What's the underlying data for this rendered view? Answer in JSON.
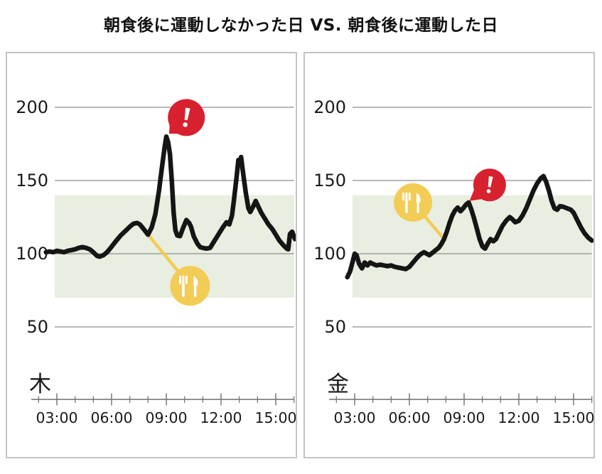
{
  "page": {
    "title": "朝食後に運動しなかった日 VS. 朝食後に運動した日",
    "background": "#ffffff"
  },
  "colors": {
    "alert_red": "#D7212E",
    "meal_yellow": "#F2CC55",
    "target_band_green": "#E8EEE0",
    "line_black": "#151515",
    "grid_gray": "#8E8E8E",
    "axis_gray": "#6E6E6E",
    "text_dark": "#1A1A1A",
    "card_border_gray": "#C3C3C3",
    "icon_glyph_white": "#FFFFFF"
  },
  "chart_data": {
    "type": "line",
    "title": "朝食後に運動しなかった日 VS. 朝食後に運動した日",
    "grid": true,
    "y_axis": {
      "ticks": [
        200,
        150,
        100,
        50
      ]
    },
    "x_axis": {
      "major_tick_labels": [
        "03:00",
        "06:00",
        "09:00",
        "12:00",
        "15:00"
      ],
      "major_tick_hours": [
        3,
        6,
        9,
        12,
        15
      ],
      "minor_tick_hours": [
        2,
        4,
        5,
        7,
        8,
        10,
        11,
        13,
        14,
        16
      ]
    },
    "target_band": {
      "low": 70,
      "high": 140
    },
    "charts": [
      {
        "id": "no-exercise-day",
        "day_label": "木",
        "series": [
          [
            2.4,
            101
          ],
          [
            2.6,
            101.5
          ],
          [
            2.8,
            101
          ],
          [
            3.0,
            102
          ],
          [
            3.2,
            101.5
          ],
          [
            3.4,
            101
          ],
          [
            3.6,
            102
          ],
          [
            3.8,
            102.5
          ],
          [
            4.0,
            103
          ],
          [
            4.2,
            104
          ],
          [
            4.4,
            104.5
          ],
          [
            4.6,
            104
          ],
          [
            4.8,
            103
          ],
          [
            5.0,
            101
          ],
          [
            5.2,
            98.5
          ],
          [
            5.35,
            98
          ],
          [
            5.55,
            99
          ],
          [
            5.75,
            101
          ],
          [
            5.95,
            104
          ],
          [
            6.2,
            108
          ],
          [
            6.5,
            112.5
          ],
          [
            6.8,
            116
          ],
          [
            7.0,
            118.5
          ],
          [
            7.2,
            120.5
          ],
          [
            7.4,
            121
          ],
          [
            7.55,
            120
          ],
          [
            7.75,
            117
          ],
          [
            8.0,
            113
          ],
          [
            8.2,
            118
          ],
          [
            8.4,
            127
          ],
          [
            8.6,
            143
          ],
          [
            8.75,
            158
          ],
          [
            8.9,
            172
          ],
          [
            9.0,
            180
          ],
          [
            9.1,
            176
          ],
          [
            9.2,
            168
          ],
          [
            9.3,
            150
          ],
          [
            9.4,
            128
          ],
          [
            9.5,
            116
          ],
          [
            9.6,
            112.5
          ],
          [
            9.75,
            112
          ],
          [
            9.9,
            117
          ],
          [
            10.1,
            123
          ],
          [
            10.25,
            121
          ],
          [
            10.35,
            118.5
          ],
          [
            10.5,
            112
          ],
          [
            10.7,
            107
          ],
          [
            10.85,
            104.5
          ],
          [
            11.0,
            104
          ],
          [
            11.2,
            103.5
          ],
          [
            11.4,
            104
          ],
          [
            11.6,
            108
          ],
          [
            11.8,
            112
          ],
          [
            11.95,
            115
          ],
          [
            12.1,
            118
          ],
          [
            12.3,
            121.5
          ],
          [
            12.45,
            120
          ],
          [
            12.6,
            126
          ],
          [
            12.7,
            136
          ],
          [
            12.85,
            152
          ],
          [
            12.95,
            164
          ],
          [
            13.0,
            161
          ],
          [
            13.1,
            166
          ],
          [
            13.2,
            156
          ],
          [
            13.35,
            142
          ],
          [
            13.5,
            131
          ],
          [
            13.6,
            128.5
          ],
          [
            13.75,
            132
          ],
          [
            13.9,
            136
          ],
          [
            14.05,
            132
          ],
          [
            14.2,
            128
          ],
          [
            14.4,
            124
          ],
          [
            14.6,
            120
          ],
          [
            14.8,
            117
          ],
          [
            15.0,
            113
          ],
          [
            15.2,
            109
          ],
          [
            15.4,
            106
          ],
          [
            15.6,
            103.5
          ],
          [
            15.68,
            103
          ],
          [
            15.78,
            113.5
          ],
          [
            15.9,
            115
          ],
          [
            16.05,
            110
          ]
        ],
        "meal_marker": {
          "icon": "fork-knife",
          "attach": {
            "hour": 8.0,
            "value": 113
          },
          "center": {
            "hour": 10.3,
            "value": 78
          },
          "radius": 28
        },
        "alert_marker": {
          "icon": "exclamation",
          "tip": {
            "hour": 9.15,
            "value": 182
          },
          "center": {
            "hour": 10.1,
            "value": 193
          },
          "radius": 26
        }
      },
      {
        "id": "exercise-day",
        "day_label": "金",
        "series": [
          [
            2.6,
            84
          ],
          [
            2.75,
            88
          ],
          [
            2.9,
            95
          ],
          [
            3.0,
            100
          ],
          [
            3.1,
            99
          ],
          [
            3.25,
            93
          ],
          [
            3.4,
            90
          ],
          [
            3.55,
            94
          ],
          [
            3.7,
            92
          ],
          [
            3.85,
            94
          ],
          [
            4.0,
            93
          ],
          [
            4.2,
            92
          ],
          [
            4.4,
            92.5
          ],
          [
            4.6,
            92
          ],
          [
            4.8,
            91.5
          ],
          [
            5.0,
            92
          ],
          [
            5.2,
            91
          ],
          [
            5.4,
            90.5
          ],
          [
            5.6,
            90
          ],
          [
            5.8,
            89.5
          ],
          [
            6.0,
            91
          ],
          [
            6.2,
            94
          ],
          [
            6.4,
            97
          ],
          [
            6.6,
            99.5
          ],
          [
            6.8,
            101
          ],
          [
            6.95,
            100
          ],
          [
            7.1,
            99
          ],
          [
            7.25,
            100.5
          ],
          [
            7.4,
            102
          ],
          [
            7.6,
            104
          ],
          [
            7.75,
            106.5
          ],
          [
            7.9,
            110
          ],
          [
            8.05,
            115
          ],
          [
            8.2,
            121
          ],
          [
            8.35,
            126
          ],
          [
            8.5,
            129.5
          ],
          [
            8.65,
            131.5
          ],
          [
            8.8,
            129
          ],
          [
            8.95,
            131
          ],
          [
            9.1,
            133.5
          ],
          [
            9.25,
            135
          ],
          [
            9.4,
            130
          ],
          [
            9.55,
            124
          ],
          [
            9.7,
            117
          ],
          [
            9.85,
            110
          ],
          [
            10.0,
            105
          ],
          [
            10.15,
            103.5
          ],
          [
            10.3,
            107
          ],
          [
            10.45,
            110
          ],
          [
            10.6,
            108.5
          ],
          [
            10.75,
            110
          ],
          [
            10.9,
            114
          ],
          [
            11.1,
            119
          ],
          [
            11.3,
            122.5
          ],
          [
            11.5,
            125
          ],
          [
            11.65,
            123.5
          ],
          [
            11.8,
            121.5
          ],
          [
            12.0,
            122.5
          ],
          [
            12.2,
            126
          ],
          [
            12.4,
            131
          ],
          [
            12.6,
            137
          ],
          [
            12.8,
            143
          ],
          [
            13.0,
            148
          ],
          [
            13.2,
            151.5
          ],
          [
            13.35,
            153
          ],
          [
            13.5,
            149
          ],
          [
            13.65,
            143
          ],
          [
            13.8,
            136
          ],
          [
            13.95,
            131
          ],
          [
            14.1,
            130
          ],
          [
            14.25,
            132.5
          ],
          [
            14.45,
            132
          ],
          [
            14.65,
            131
          ],
          [
            14.85,
            130
          ],
          [
            15.0,
            128
          ],
          [
            15.2,
            123
          ],
          [
            15.4,
            118
          ],
          [
            15.6,
            114
          ],
          [
            15.8,
            111
          ],
          [
            16.0,
            109
          ]
        ],
        "meal_marker": {
          "icon": "fork-knife",
          "attach": {
            "hour": 7.9,
            "value": 110
          },
          "center": {
            "hour": 6.2,
            "value": 135
          },
          "radius": 27
        },
        "alert_marker": {
          "icon": "exclamation",
          "tip": {
            "hour": 9.3,
            "value": 136
          },
          "center": {
            "hour": 10.4,
            "value": 147
          },
          "radius": 23
        }
      }
    ]
  }
}
